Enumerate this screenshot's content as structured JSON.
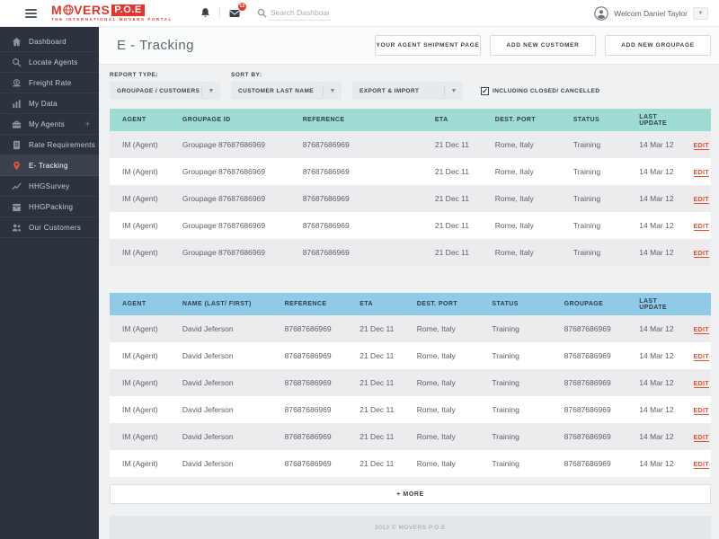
{
  "topbar": {
    "logo": {
      "part1": "M",
      "part2": "VERS",
      "badge": "P.O.E",
      "tagline": "THE INTERNATIONAL MOVERS PORTAL"
    },
    "search_placeholder": "Search Dashboard",
    "messages_badge": "13",
    "user_greeting": "Welcom Daniel Taylor"
  },
  "sidebar": {
    "items": [
      {
        "label": "Dashboard",
        "icon": "home-icon",
        "active": false
      },
      {
        "label": "Locate Agents",
        "icon": "search-icon",
        "active": false
      },
      {
        "label": "Freight Rate",
        "icon": "coin-icon",
        "active": false
      },
      {
        "label": "My Data",
        "icon": "bar-chart-icon",
        "active": false
      },
      {
        "label": "My Agents",
        "icon": "briefcase-icon",
        "active": false,
        "suffix": "+"
      },
      {
        "label": "Rate Requirements",
        "icon": "document-icon",
        "active": false
      },
      {
        "label": "E- Tracking",
        "icon": "map-pin-icon",
        "active": true
      },
      {
        "label": "HHGSurvey",
        "icon": "line-chart-icon",
        "active": false
      },
      {
        "label": "HHGPacking",
        "icon": "package-icon",
        "active": false
      },
      {
        "label": "Our Customers",
        "icon": "users-icon",
        "active": false
      }
    ]
  },
  "page": {
    "title": "E - Tracking",
    "actions": [
      "YOUR AGENT SHIPMENT PAGE",
      "ADD NEW CUSTOMER",
      "ADD NEW GROUPAGE"
    ],
    "filters": {
      "report_type_label": "REPORT TYPE:",
      "report_type_value": "GROUPAGE / CUSTOMERS",
      "sort_by_label": "SORT BY:",
      "sort_by_value": "CUSTOMER LAST NAME",
      "export_import_value": "EXPORT & IMPORT",
      "checkbox_label": "INCLUDING CLOSED/ CANCELLED",
      "checkbox_checked": true
    },
    "groupage_table": {
      "columns": [
        "AGENT",
        "GROUPAGE ID",
        "REFERENCE",
        "ETA",
        "DEST. PORT",
        "STATUS",
        "LAST UPDATE"
      ],
      "action_label": "EDIT",
      "rows": [
        [
          "IM (Agent)",
          "Groupage 87687686969",
          "87687686969",
          "21 Dec 11",
          "Rome, Italy",
          "Training",
          "14 Mar 12"
        ],
        [
          "IM (Agent)",
          "Groupage 87687686969",
          "87687686969",
          "21 Dec 11",
          "Rome, Italy",
          "Training",
          "14 Mar 12"
        ],
        [
          "IM (Agent)",
          "Groupage 87687686969",
          "87687686969",
          "21 Dec 11",
          "Rome, Italy",
          "Training",
          "14 Mar 12"
        ],
        [
          "IM (Agent)",
          "Groupage 87687686969",
          "87687686969",
          "21 Dec 11",
          "Rome, Italy",
          "Training",
          "14 Mar 12"
        ],
        [
          "IM (Agent)",
          "Groupage 87687686969",
          "87687686969",
          "21 Dec 11",
          "Rome, Italy",
          "Training",
          "14 Mar 12"
        ]
      ]
    },
    "customers_table": {
      "columns": [
        "AGENT",
        "NAME (LAST/ FIRST)",
        "REFERENCE",
        "ETA",
        "DEST. PORT",
        "STATUS",
        "GROUPAGE",
        "LAST UPDATE"
      ],
      "action_label": "EDIT",
      "rows": [
        [
          "IM (Agent)",
          "David Jeferson",
          "87687686969",
          "21 Dec 11",
          "Rome, Italy",
          "Training",
          "87687686969",
          "14 Mar 12"
        ],
        [
          "IM (Agent)",
          "David Jeferson",
          "87687686969",
          "21 Dec 11",
          "Rome, Italy",
          "Training",
          "87687686969",
          "14 Mar 12"
        ],
        [
          "IM (Agent)",
          "David Jeferson",
          "87687686969",
          "21 Dec 11",
          "Rome, Italy",
          "Training",
          "87687686969",
          "14 Mar 12"
        ],
        [
          "IM (Agent)",
          "David Jeferson",
          "87687686969",
          "21 Dec 11",
          "Rome, Italy",
          "Training",
          "87687686969",
          "14 Mar 12"
        ],
        [
          "IM (Agent)",
          "David Jeferson",
          "87687686969",
          "21 Dec 11",
          "Rome, Italy",
          "Training",
          "87687686969",
          "14 Mar 12"
        ],
        [
          "IM (Agent)",
          "David Jeferson",
          "87687686969",
          "21 Dec 11",
          "Rome, Italy",
          "Training",
          "87687686969",
          "14 Mar 12"
        ]
      ]
    },
    "more_button": "+ MORE"
  },
  "footer": {
    "copyright": "2013 © MOVERS P.O.E"
  },
  "colors": {
    "brand_red": "#e5352c",
    "sidebar_bg": "#2b343e",
    "sidebar_active_bg": "#3a434d",
    "groupage_header": "#9edbd2",
    "customers_header": "#8fcbe9",
    "edit_link": "#e2502f",
    "row_alt": "#ececee"
  }
}
